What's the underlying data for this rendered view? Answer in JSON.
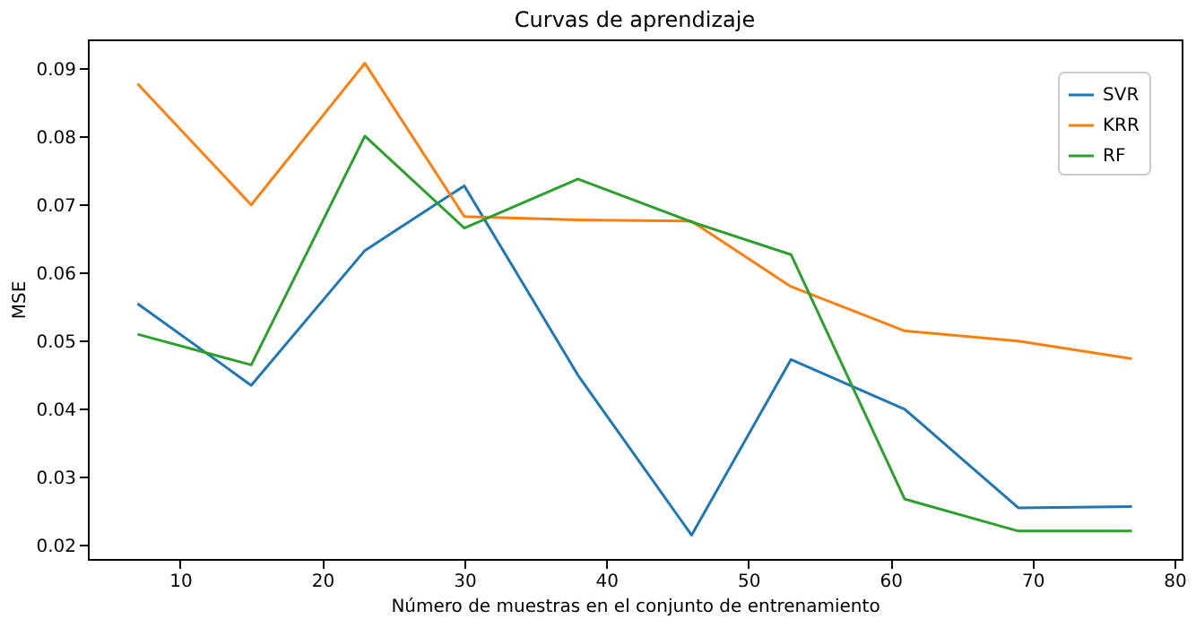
{
  "chart_data": {
    "type": "line",
    "title": "Curvas de aprendizaje",
    "xlabel": "Número de muestras en el conjunto de entrenamiento",
    "ylabel": "MSE",
    "x": [
      7,
      15,
      23,
      30,
      38,
      46,
      53,
      61,
      69,
      77
    ],
    "series": [
      {
        "name": "SVR",
        "color": "#1f77b4",
        "values": [
          0.0555,
          0.0435,
          0.0633,
          0.0728,
          0.045,
          0.0215,
          0.0473,
          0.04,
          0.0255,
          0.0257
        ]
      },
      {
        "name": "KRR",
        "color": "#ff7f0e",
        "values": [
          0.0878,
          0.07,
          0.0908,
          0.0683,
          0.0678,
          0.0676,
          0.058,
          0.0515,
          0.05,
          0.0474
        ]
      },
      {
        "name": "RF",
        "color": "#2ca02c",
        "values": [
          0.051,
          0.0465,
          0.0801,
          0.0666,
          0.0738,
          0.0675,
          0.0627,
          0.0268,
          0.0221,
          0.0221
        ]
      }
    ],
    "xlim": [
      3.5,
      80.5
    ],
    "xticks": [
      10,
      20,
      30,
      40,
      50,
      60,
      70,
      80
    ],
    "ylim": [
      0.018,
      0.0943
    ],
    "yticks": [
      0.02,
      0.03,
      0.04,
      0.05,
      0.06,
      0.07,
      0.08,
      0.09
    ],
    "grid": false,
    "legend": "top right",
    "marker": "none",
    "line_style": "solid"
  }
}
